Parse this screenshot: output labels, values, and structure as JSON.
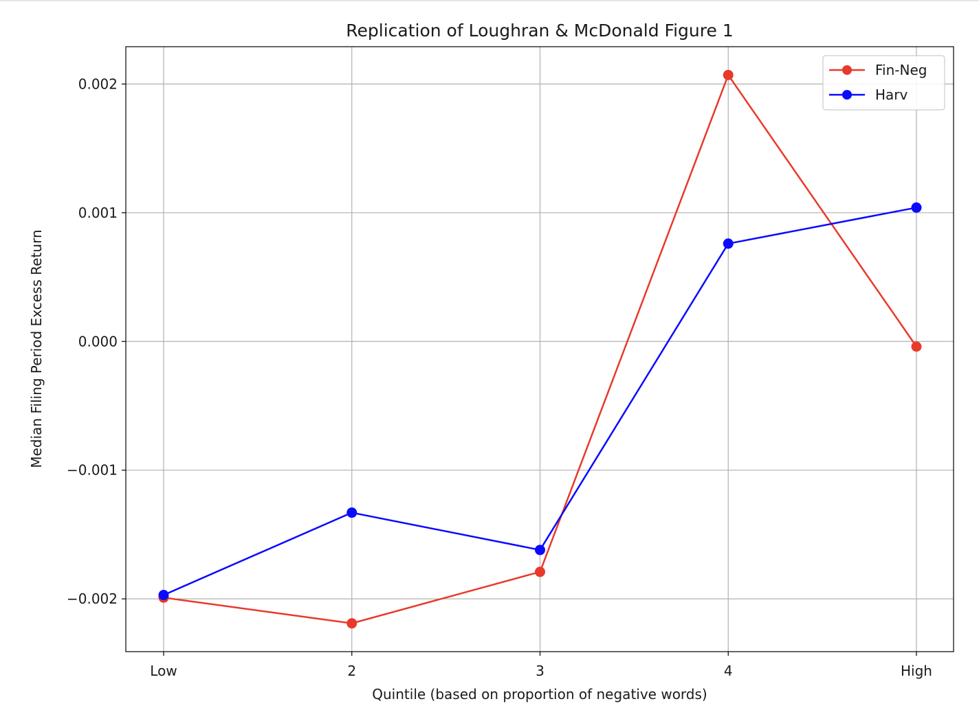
{
  "chart_data": {
    "type": "line",
    "title": "Replication of Loughran & McDonald Figure 1",
    "xlabel": "Quintile (based on proportion of negative words)",
    "ylabel": "Median Filing Period Excess Return",
    "categories": [
      "Low",
      "2",
      "3",
      "4",
      "High"
    ],
    "y_ticks": [
      0.002,
      0.001,
      0.0,
      -0.001,
      -0.002
    ],
    "y_tick_labels": [
      "0.002",
      "0.001",
      "0.000",
      "−0.001",
      "−0.002"
    ],
    "ylim": [
      -0.00241,
      0.00229
    ],
    "grid": true,
    "legend_position": "top-right",
    "series": [
      {
        "name": "Fin-Neg",
        "color": "#e8392b",
        "values": [
          -0.00199,
          -0.00219,
          -0.00179,
          0.00207,
          -4e-05
        ]
      },
      {
        "name": "Harv",
        "color": "#0a0aff",
        "values": [
          -0.00197,
          -0.00133,
          -0.00162,
          0.00076,
          0.00104
        ]
      }
    ]
  }
}
